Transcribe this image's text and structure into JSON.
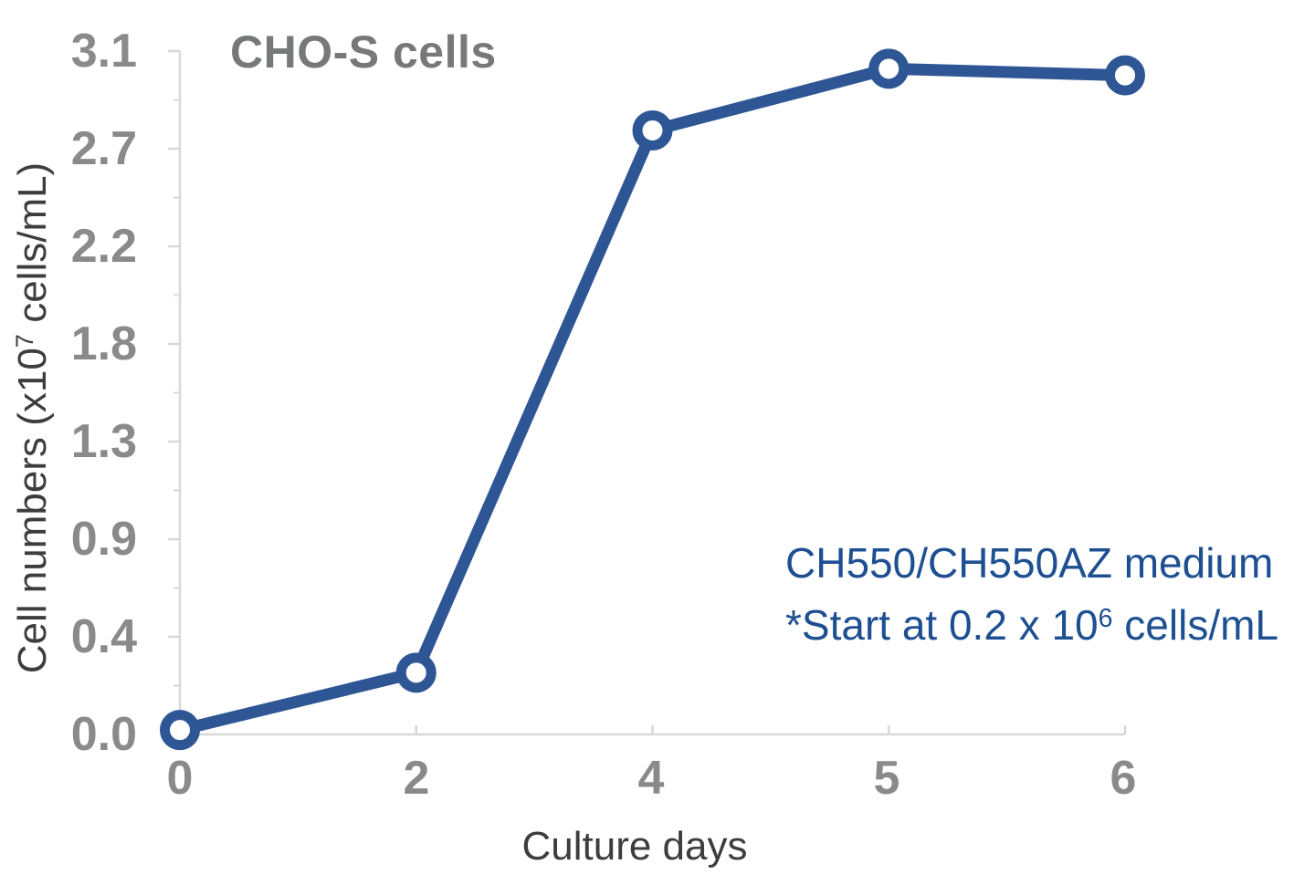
{
  "chart_data": {
    "type": "line",
    "title": "CHO-S cells",
    "xlabel": "Culture days",
    "ylabel": "Cell numbers (x10⁷ cells/mL)",
    "ylabel_parts": {
      "prefix": "Cell numbers (x10",
      "sup": "7",
      "suffix": " cells/mL)"
    },
    "x_axis_type": "categorical",
    "x_tick_labels": [
      "0",
      "2",
      "4",
      "5",
      "6"
    ],
    "y_tick_labels": [
      "3.1",
      "2.7",
      "2.2",
      "1.8",
      "1.3",
      "0.9",
      "0.4",
      "0.0"
    ],
    "ylim": [
      0,
      3.1
    ],
    "grid": false,
    "legend": "none",
    "series": [
      {
        "name": "CHO-S cells in CH550/CH550AZ medium",
        "x": [
          0,
          2,
          4,
          5,
          6
        ],
        "values": [
          0.02,
          0.28,
          2.74,
          3.02,
          2.99
        ],
        "marker": "open-circle",
        "units": "x10^7 cells/mL"
      }
    ]
  },
  "annotation": {
    "line1": "CH550/CH550AZ medium",
    "line2_prefix": "*Start at 0.2 x 10",
    "line2_sup": "6",
    "line2_suffix": " cells/mL"
  },
  "colors": {
    "line": "#2e5694",
    "marker_fill": "#ffffff",
    "annotation_text": "#1d4f91",
    "title_text": "#77787a",
    "tick_text": "#8a8a8a",
    "axis_label_text": "#3d3d3d",
    "axis_line": "#d8d8d8"
  }
}
